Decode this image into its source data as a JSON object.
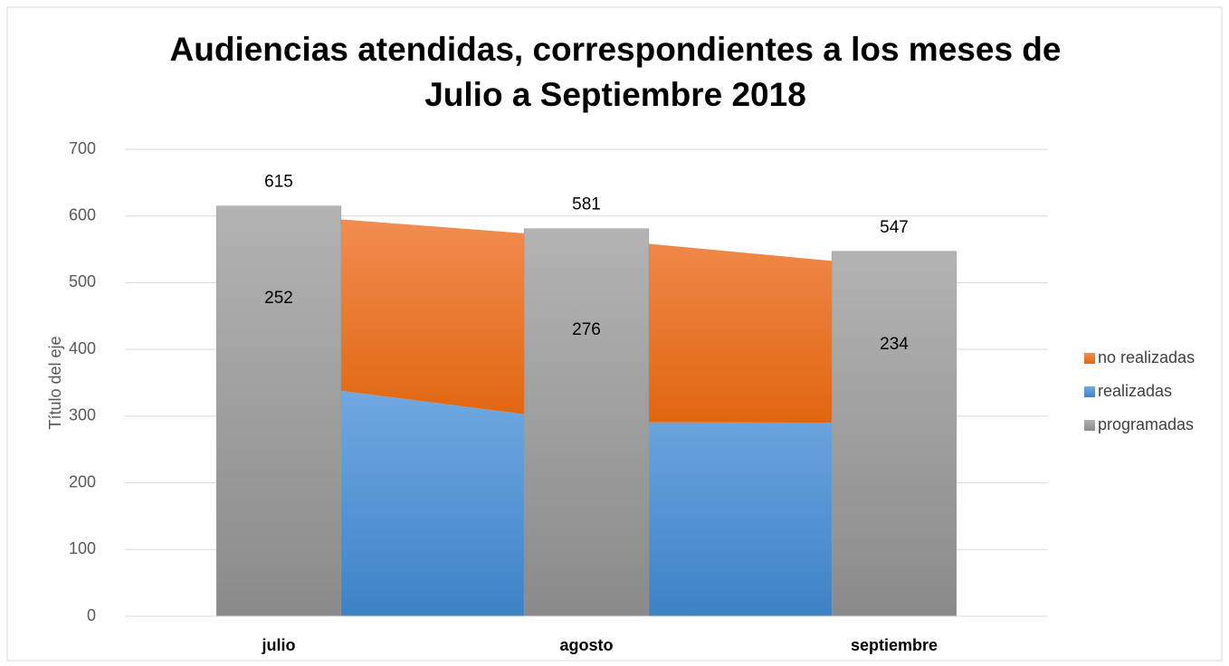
{
  "chart_data": {
    "type": "bar_area",
    "title": "Audiencias  atendidas,  correspondientes a los meses de",
    "title_line2": "Julio a Septiembre 2018",
    "y_label": "Título del eje",
    "categories": [
      "julio",
      "agosto",
      "septiembre"
    ],
    "series": [
      {
        "name": "no realizadas",
        "color": "#ed7d31",
        "kind": "area",
        "values": [
          252,
          276,
          234
        ]
      },
      {
        "name": "realizadas",
        "color": "#5b9bd5",
        "kind": "area",
        "values": [
          350,
          291,
          290
        ]
      },
      {
        "name": "programadas",
        "color": "#a5a5a5",
        "kind": "bar",
        "values": [
          615,
          581,
          547
        ]
      }
    ],
    "ylim": [
      0,
      700
    ],
    "yticks": [
      0,
      100,
      200,
      300,
      400,
      500,
      600,
      700
    ],
    "grid": true,
    "legend": "right"
  }
}
